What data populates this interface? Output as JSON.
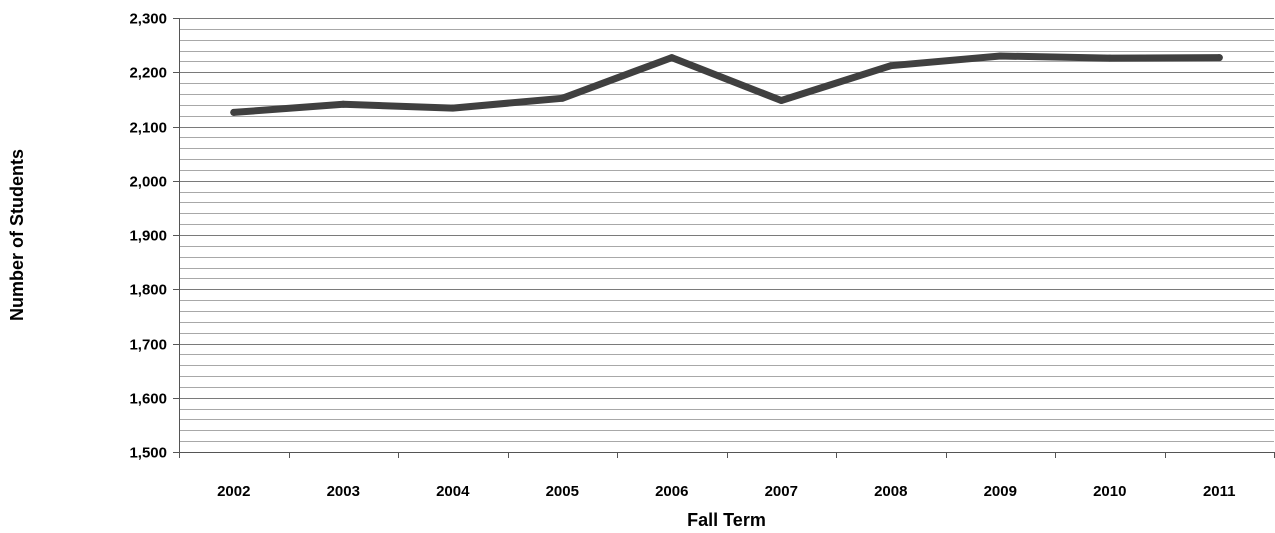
{
  "chart_data": {
    "type": "line",
    "xlabel": "Fall Term",
    "ylabel": "Number of Students",
    "categories": [
      "2002",
      "2003",
      "2004",
      "2005",
      "2006",
      "2007",
      "2008",
      "2009",
      "2010",
      "2011"
    ],
    "series": [
      {
        "values": [
          2126,
          2141,
          2134,
          2152,
          2227,
          2148,
          2212,
          2230,
          2226,
          2227
        ]
      }
    ],
    "ylim": [
      1500,
      2300
    ],
    "y_major_step": 100,
    "y_minor_step": 20,
    "y_tick_labels": [
      "1,500",
      "1,600",
      "1,700",
      "1,800",
      "1,900",
      "2,000",
      "2,100",
      "2,200",
      "2,300"
    ],
    "grid": true,
    "legend": "none",
    "line_color": "#404040"
  }
}
